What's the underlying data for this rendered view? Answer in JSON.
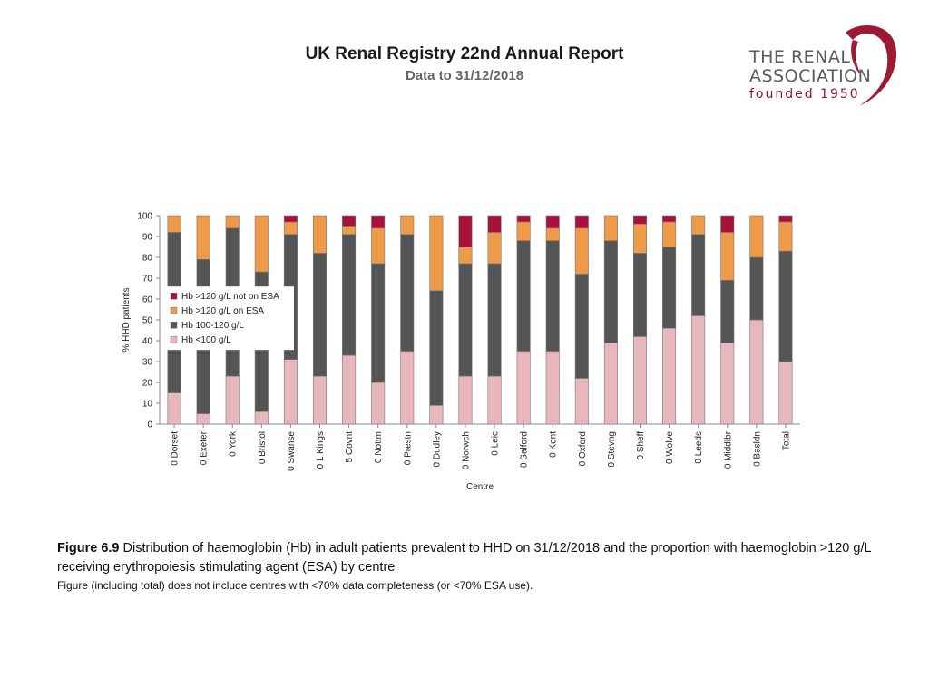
{
  "header": {
    "title": "UK Renal Registry 22nd Annual Report",
    "subtitle": "Data to 31/12/2018"
  },
  "logo": {
    "line1": "THE RENAL",
    "line2": "ASSOCIATION",
    "line3": "founded 1950",
    "ribbon_color": "#9b1b35"
  },
  "chart_data": {
    "type": "bar",
    "stacked": true,
    "title": "",
    "xlabel": "Centre",
    "ylabel": "% HHD patients",
    "ylim": [
      0,
      100
    ],
    "yticks": [
      0,
      10,
      20,
      30,
      40,
      50,
      60,
      70,
      80,
      90,
      100
    ],
    "grid": false,
    "legend_position": "left",
    "categories": [
      "0 Dorset",
      "0 Exeter",
      "0 York",
      "0 Bristol",
      "0 Swanse",
      "0 L Kings",
      "5 Covnt",
      "0 Nottm",
      "0 Prestn",
      "0 Dudley",
      "0 Norwch",
      "0 Leic",
      "0 Salford",
      "0 Kent",
      "0 Oxford",
      "0 Stevng",
      "0 Sheff",
      "0 Wolve",
      "0 Leeds",
      "0 Middlbr",
      "0 Basldn",
      "Total"
    ],
    "series": [
      {
        "name": "Hb <100 g/L",
        "color": "#e8b7bd",
        "values": [
          15,
          5,
          23,
          6,
          31,
          23,
          33,
          20,
          35,
          9,
          23,
          23,
          35,
          35,
          22,
          39,
          42,
          46,
          52,
          39,
          50,
          30
        ]
      },
      {
        "name": "Hb 100-120 g/L",
        "color": "#555555",
        "values": [
          77,
          74,
          71,
          67,
          60,
          59,
          58,
          57,
          56,
          55,
          54,
          54,
          53,
          53,
          50,
          49,
          40,
          39,
          39,
          30,
          30,
          53
        ]
      },
      {
        "name": "Hb >120 g/L on ESA",
        "color": "#ee9a48",
        "values": [
          8,
          21,
          6,
          27,
          6,
          18,
          4,
          17,
          9,
          36,
          8,
          15,
          9,
          6,
          22,
          12,
          14,
          12,
          9,
          23,
          20,
          14
        ]
      },
      {
        "name": "Hb >120 g/L not on ESA",
        "color": "#a8123a",
        "values": [
          0,
          0,
          0,
          0,
          3,
          0,
          5,
          6,
          0,
          0,
          15,
          8,
          3,
          6,
          6,
          0,
          4,
          3,
          0,
          8,
          0,
          3
        ]
      }
    ]
  },
  "caption": {
    "label": "Figure 6.9",
    "text": " Distribution of haemoglobin (Hb) in adult patients prevalent to HHD on 31/12/2018 and the proportion with haemoglobin >120 g/L receiving erythropoiesis stimulating agent (ESA) by centre",
    "note": "Figure (including total) does not include centres with <70% data completeness (or <70% ESA use)."
  }
}
